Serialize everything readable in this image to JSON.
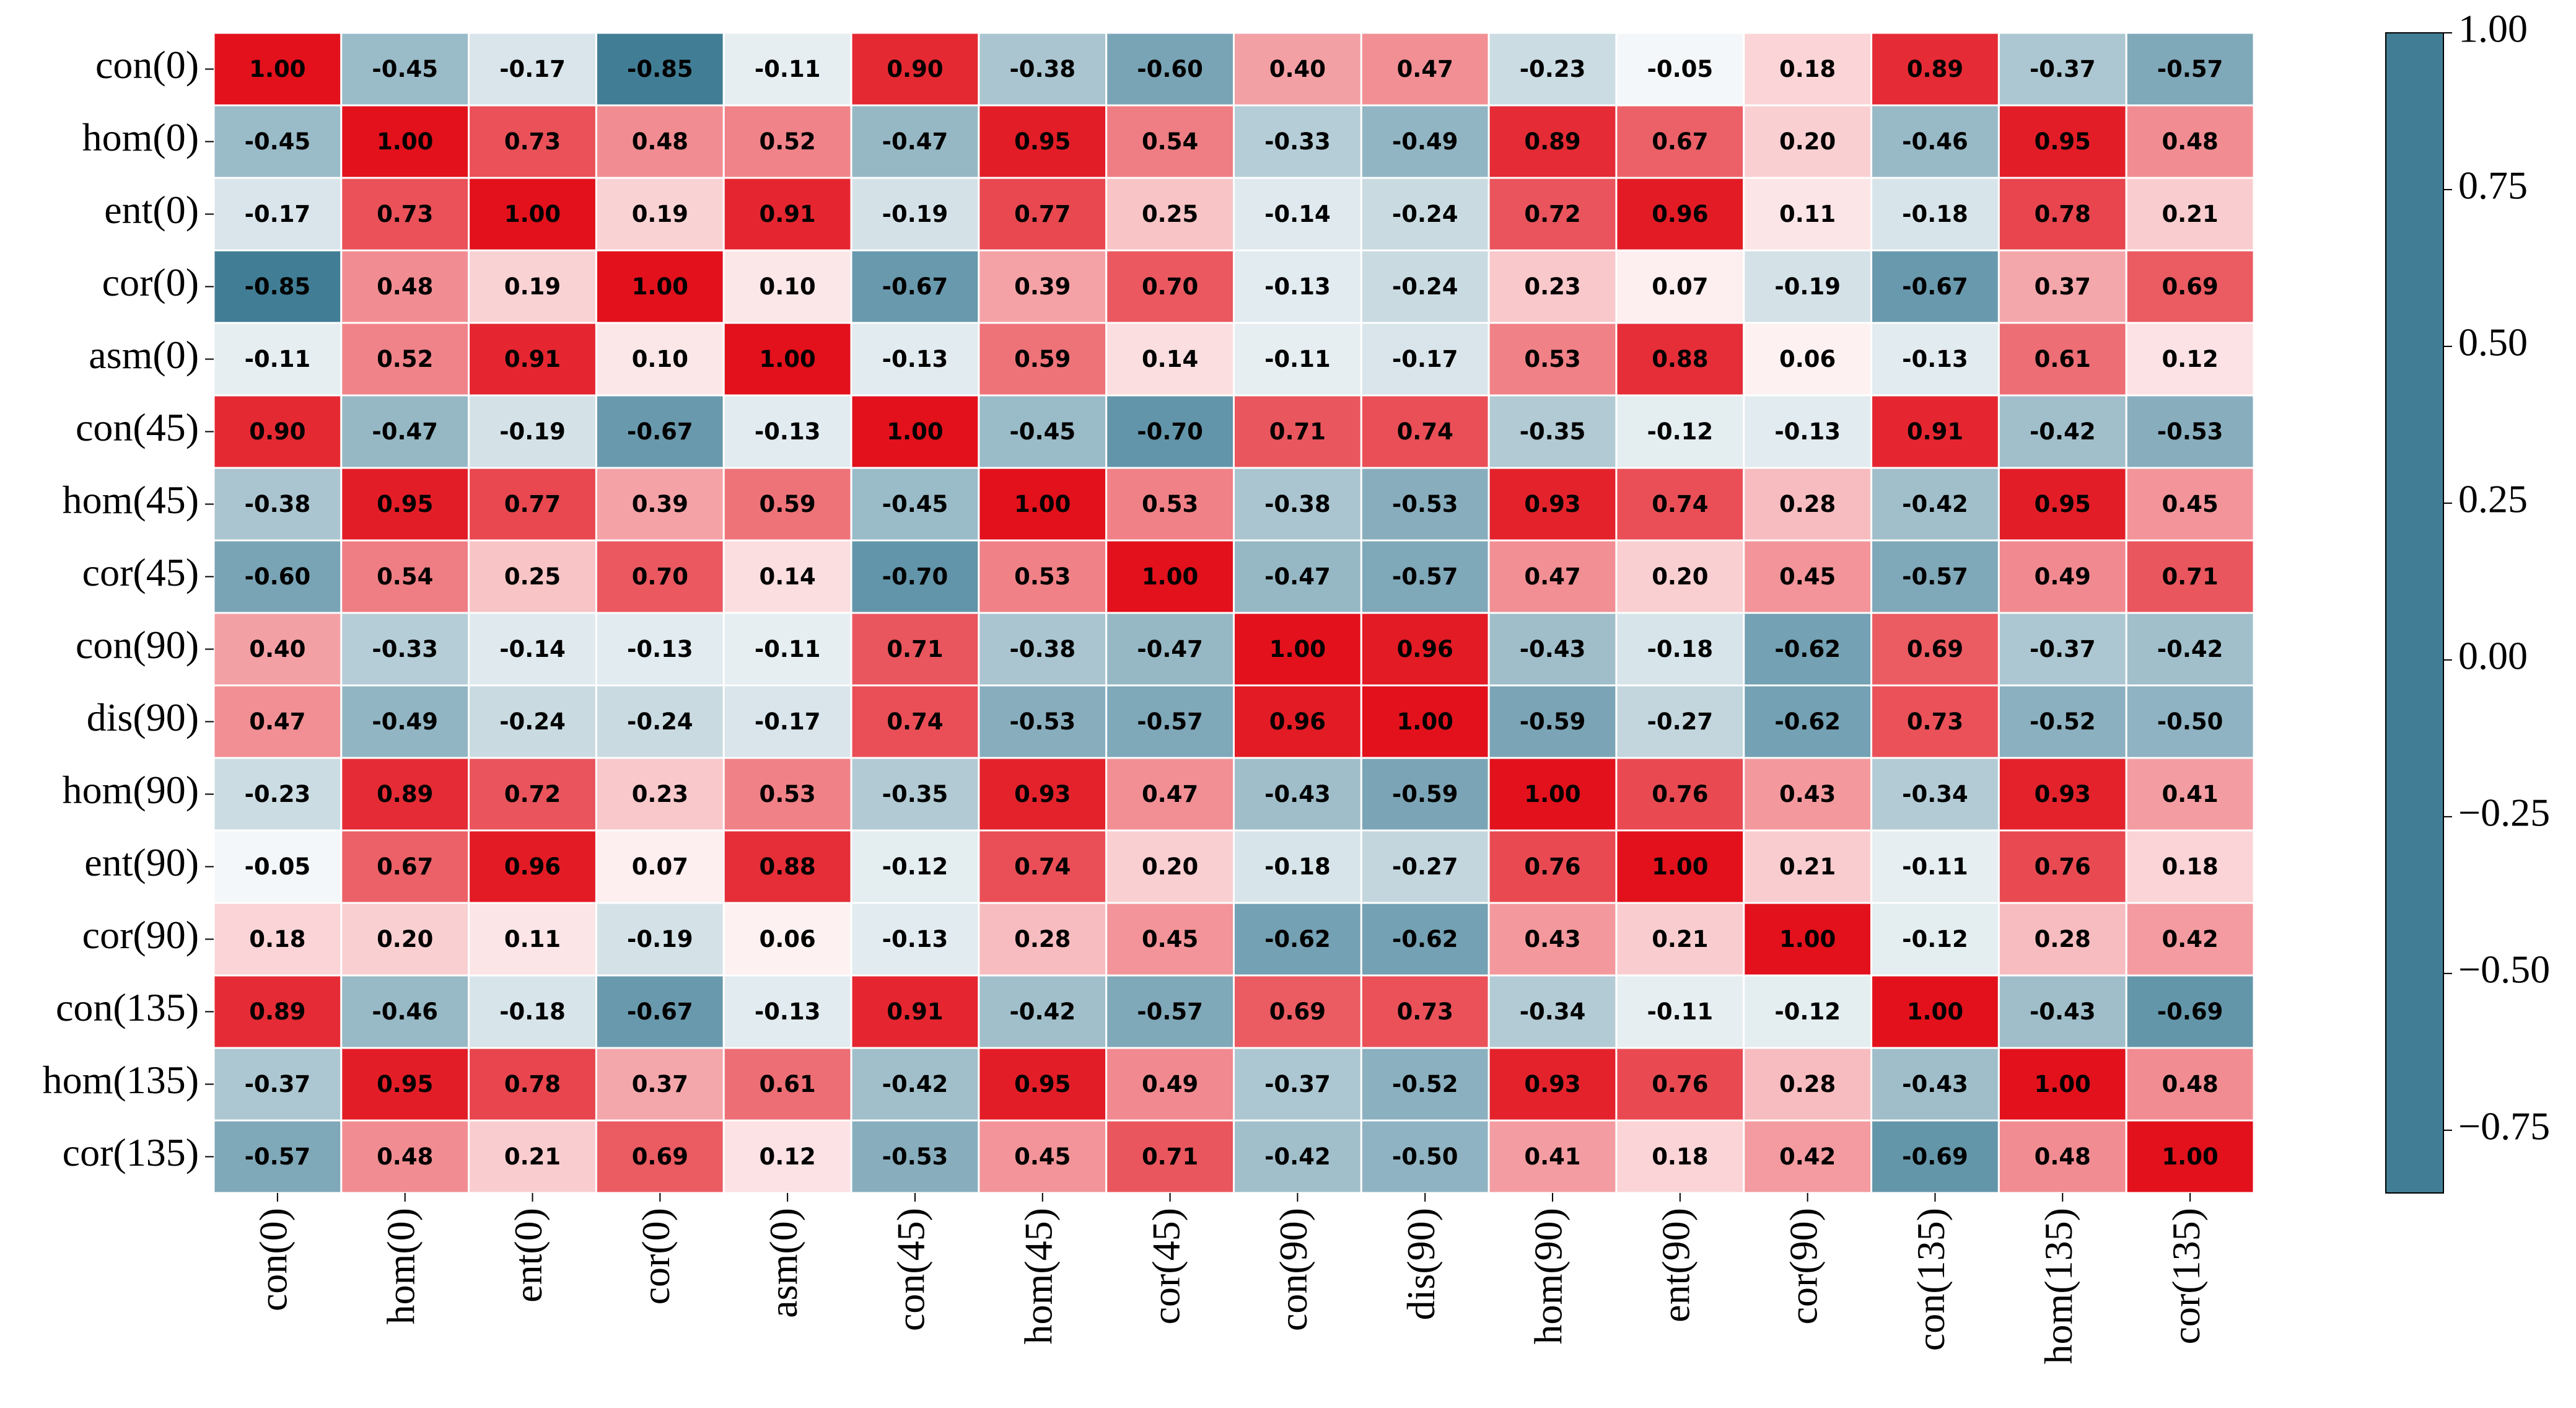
{
  "chart_data": {
    "type": "heatmap",
    "x_categories": [
      "con(0)",
      "hom(0)",
      "ent(0)",
      "cor(0)",
      "asm(0)",
      "con(45)",
      "hom(45)",
      "cor(45)",
      "con(90)",
      "dis(90)",
      "hom(90)",
      "ent(90)",
      "cor(90)",
      "con(135)",
      "hom(135)",
      "cor(135)"
    ],
    "y_categories": [
      "con(0)",
      "hom(0)",
      "ent(0)",
      "cor(0)",
      "asm(0)",
      "con(45)",
      "hom(45)",
      "cor(45)",
      "con(90)",
      "dis(90)",
      "hom(90)",
      "ent(90)",
      "cor(90)",
      "con(135)",
      "hom(135)",
      "cor(135)"
    ],
    "values": [
      [
        1.0,
        -0.45,
        -0.17,
        -0.85,
        -0.11,
        0.9,
        -0.38,
        -0.6,
        0.4,
        0.47,
        -0.23,
        -0.05,
        0.18,
        0.89,
        -0.37,
        -0.57
      ],
      [
        -0.45,
        1.0,
        0.73,
        0.48,
        0.52,
        -0.47,
        0.95,
        0.54,
        -0.33,
        -0.49,
        0.89,
        0.67,
        0.2,
        -0.46,
        0.95,
        0.48
      ],
      [
        -0.17,
        0.73,
        1.0,
        0.19,
        0.91,
        -0.19,
        0.77,
        0.25,
        -0.14,
        -0.24,
        0.72,
        0.96,
        0.11,
        -0.18,
        0.78,
        0.21
      ],
      [
        -0.85,
        0.48,
        0.19,
        1.0,
        0.1,
        -0.67,
        0.39,
        0.7,
        -0.13,
        -0.24,
        0.23,
        0.07,
        -0.19,
        -0.67,
        0.37,
        0.69
      ],
      [
        -0.11,
        0.52,
        0.91,
        0.1,
        1.0,
        -0.13,
        0.59,
        0.14,
        -0.11,
        -0.17,
        0.53,
        0.88,
        0.06,
        -0.13,
        0.61,
        0.12
      ],
      [
        0.9,
        -0.47,
        -0.19,
        -0.67,
        -0.13,
        1.0,
        -0.45,
        -0.7,
        0.71,
        0.74,
        -0.35,
        -0.12,
        -0.13,
        0.91,
        -0.42,
        -0.53
      ],
      [
        -0.38,
        0.95,
        0.77,
        0.39,
        0.59,
        -0.45,
        1.0,
        0.53,
        -0.38,
        -0.53,
        0.93,
        0.74,
        0.28,
        -0.42,
        0.95,
        0.45
      ],
      [
        -0.6,
        0.54,
        0.25,
        0.7,
        0.14,
        -0.7,
        0.53,
        1.0,
        -0.47,
        -0.57,
        0.47,
        0.2,
        0.45,
        -0.57,
        0.49,
        0.71
      ],
      [
        0.4,
        -0.33,
        -0.14,
        -0.13,
        -0.11,
        0.71,
        -0.38,
        -0.47,
        1.0,
        0.96,
        -0.43,
        -0.18,
        -0.62,
        0.69,
        -0.37,
        -0.42
      ],
      [
        0.47,
        -0.49,
        -0.24,
        -0.24,
        -0.17,
        0.74,
        -0.53,
        -0.57,
        0.96,
        1.0,
        -0.59,
        -0.27,
        -0.62,
        0.73,
        -0.52,
        -0.5
      ],
      [
        -0.23,
        0.89,
        0.72,
        0.23,
        0.53,
        -0.35,
        0.93,
        0.47,
        -0.43,
        -0.59,
        1.0,
        0.76,
        0.43,
        -0.34,
        0.93,
        0.41
      ],
      [
        -0.05,
        0.67,
        0.96,
        0.07,
        0.88,
        -0.12,
        0.74,
        0.2,
        -0.18,
        -0.27,
        0.76,
        1.0,
        0.21,
        -0.11,
        0.76,
        0.18
      ],
      [
        0.18,
        0.2,
        0.11,
        -0.19,
        0.06,
        -0.13,
        0.28,
        0.45,
        -0.62,
        -0.62,
        0.43,
        0.21,
        1.0,
        -0.12,
        0.28,
        0.42
      ],
      [
        0.89,
        -0.46,
        -0.18,
        -0.67,
        -0.13,
        0.91,
        -0.42,
        -0.57,
        0.69,
        0.73,
        -0.34,
        -0.11,
        -0.12,
        1.0,
        -0.43,
        -0.69
      ],
      [
        -0.37,
        0.95,
        0.78,
        0.37,
        0.61,
        -0.42,
        0.95,
        0.49,
        -0.37,
        -0.52,
        0.93,
        0.76,
        0.28,
        -0.43,
        1.0,
        0.48
      ],
      [
        -0.57,
        0.48,
        0.21,
        0.69,
        0.12,
        -0.53,
        0.45,
        0.71,
        -0.42,
        -0.5,
        0.41,
        0.18,
        0.42,
        -0.69,
        0.48,
        1.0
      ]
    ],
    "value_labels": [
      [
        "1.00",
        "-0.45",
        "-0.17",
        "-0.85",
        "-0.11",
        "0.90",
        "-0.38",
        "-0.60",
        "0.40",
        "0.47",
        "-0.23",
        "-0.05",
        "0.18",
        "0.89",
        "-0.37",
        "-0.57"
      ],
      [
        "-0.45",
        "1.00",
        "0.73",
        "0.48",
        "0.52",
        "-0.47",
        "0.95",
        "0.54",
        "-0.33",
        "-0.49",
        "0.89",
        "0.67",
        "0.20",
        "-0.46",
        "0.95",
        "0.48"
      ],
      [
        "-0.17",
        "0.73",
        "1.00",
        "0.19",
        "0.91",
        "-0.19",
        "0.77",
        "0.25",
        "-0.14",
        "-0.24",
        "0.72",
        "0.96",
        "0.11",
        "-0.18",
        "0.78",
        "0.21"
      ],
      [
        "-0.85",
        "0.48",
        "0.19",
        "1.00",
        "0.10",
        "-0.67",
        "0.39",
        "0.70",
        "-0.13",
        "-0.24",
        "0.23",
        "0.07",
        "-0.19",
        "-0.67",
        "0.37",
        "0.69"
      ],
      [
        "-0.11",
        "0.52",
        "0.91",
        "0.10",
        "1.00",
        "-0.13",
        "0.59",
        "0.14",
        "-0.11",
        "-0.17",
        "0.53",
        "0.88",
        "0.06",
        "-0.13",
        "0.61",
        "0.12"
      ],
      [
        "0.90",
        "-0.47",
        "-0.19",
        "-0.67",
        "-0.13",
        "1.00",
        "-0.45",
        "-0.70",
        "0.71",
        "0.74",
        "-0.35",
        "-0.12",
        "-0.13",
        "0.91",
        "-0.42",
        "-0.53"
      ],
      [
        "-0.38",
        "0.95",
        "0.77",
        "0.39",
        "0.59",
        "-0.45",
        "1.00",
        "0.53",
        "-0.38",
        "-0.53",
        "0.93",
        "0.74",
        "0.28",
        "-0.42",
        "0.95",
        "0.45"
      ],
      [
        "-0.60",
        "0.54",
        "0.25",
        "0.70",
        "0.14",
        "-0.70",
        "0.53",
        "1.00",
        "-0.47",
        "-0.57",
        "0.47",
        "0.20",
        "0.45",
        "-0.57",
        "0.49",
        "0.71"
      ],
      [
        "0.40",
        "-0.33",
        "-0.14",
        "-0.13",
        "-0.11",
        "0.71",
        "-0.38",
        "-0.47",
        "1.00",
        "0.96",
        "-0.43",
        "-0.18",
        "-0.62",
        "0.69",
        "-0.37",
        "-0.42"
      ],
      [
        "0.47",
        "-0.49",
        "-0.24",
        "-0.24",
        "-0.17",
        "0.74",
        "-0.53",
        "-0.57",
        "0.96",
        "1.00",
        "-0.59",
        "-0.27",
        "-0.62",
        "0.73",
        "-0.52",
        "-0.50"
      ],
      [
        "-0.23",
        "0.89",
        "0.72",
        "0.23",
        "0.53",
        "-0.35",
        "0.93",
        "0.47",
        "-0.43",
        "-0.59",
        "1.00",
        "0.76",
        "0.43",
        "-0.34",
        "0.93",
        "0.41"
      ],
      [
        "-0.05",
        "0.67",
        "0.96",
        "0.07",
        "0.88",
        "-0.12",
        "0.74",
        "0.20",
        "-0.18",
        "-0.27",
        "0.76",
        "1.00",
        "0.21",
        "-0.11",
        "0.76",
        "0.18"
      ],
      [
        "0.18",
        "0.20",
        "0.11",
        "-0.19",
        "0.06",
        "-0.13",
        "0.28",
        "0.45",
        "-0.62",
        "-0.62",
        "0.43",
        "0.21",
        "1.00",
        "-0.12",
        "0.28",
        "0.42"
      ],
      [
        "0.89",
        "-0.46",
        "-0.18",
        "-0.67",
        "-0.13",
        "0.91",
        "-0.42",
        "-0.57",
        "0.69",
        "0.73",
        "-0.34",
        "-0.11",
        "-0.12",
        "1.00",
        "-0.43",
        "-0.69"
      ],
      [
        "-0.37",
        "0.95",
        "0.78",
        "0.37",
        "0.61",
        "-0.42",
        "0.95",
        "0.49",
        "-0.37",
        "-0.52",
        "0.93",
        "0.76",
        "0.28",
        "-0.43",
        "1.00",
        "0.48"
      ],
      [
        "-0.57",
        "0.48",
        "0.21",
        "0.69",
        "0.12",
        "-0.53",
        "0.45",
        "0.71",
        "-0.42",
        "-0.50",
        "0.41",
        "0.18",
        "0.42",
        "-0.69",
        "0.48",
        "1.00"
      ]
    ],
    "colormap": [
      "#1f6784",
      "#ffffff",
      "#e2111c"
    ],
    "colorbar": {
      "ylim": [
        -0.85,
        1.0
      ],
      "yticks": [
        {
          "value": -0.75,
          "label": "−0.75"
        },
        {
          "value": -0.5,
          "label": "−0.50"
        },
        {
          "value": -0.25,
          "label": "−0.25"
        },
        {
          "value": 0,
          "label": "0.00"
        },
        {
          "value": 0.25,
          "label": "0.25"
        },
        {
          "value": 0.5,
          "label": "0.50"
        },
        {
          "value": 0.75,
          "label": "0.75"
        },
        {
          "value": 1.0,
          "label": "1.00"
        }
      ]
    }
  }
}
